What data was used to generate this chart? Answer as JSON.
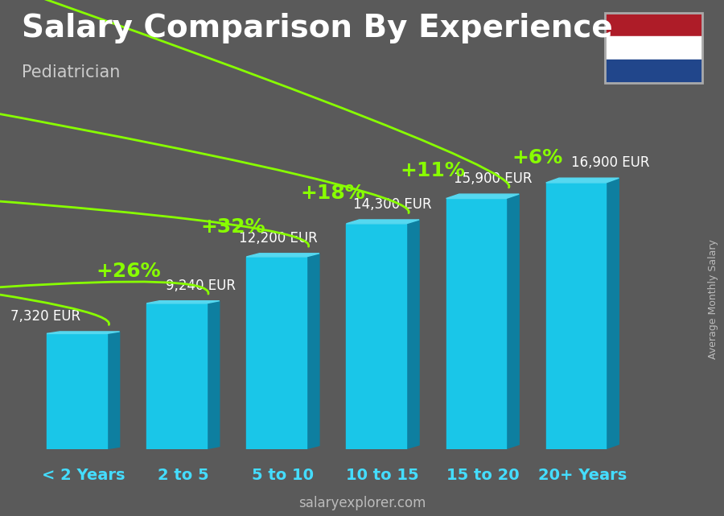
{
  "title": "Salary Comparison By Experience",
  "subtitle": "Pediatrician",
  "ylabel": "Average Monthly Salary",
  "watermark": "salaryexplorer.com",
  "categories": [
    "< 2 Years",
    "2 to 5",
    "5 to 10",
    "10 to 15",
    "15 to 20",
    "20+ Years"
  ],
  "values": [
    7320,
    9240,
    12200,
    14300,
    15900,
    16900
  ],
  "labels": [
    "7,320 EUR",
    "9,240 EUR",
    "12,200 EUR",
    "14,300 EUR",
    "15,900 EUR",
    "16,900 EUR"
  ],
  "pct_changes": [
    "+26%",
    "+32%",
    "+18%",
    "+11%",
    "+6%"
  ],
  "bar_color_face": "#1ac6e8",
  "bar_color_side": "#0e7fa0",
  "bar_color_top": "#55d8f0",
  "background_color": "#5a5a5a",
  "title_color": "#ffffff",
  "subtitle_color": "#cccccc",
  "label_color": "#ffffff",
  "category_color": "#44ddff",
  "pct_color": "#88ff00",
  "arrow_color": "#88ff00",
  "ylabel_color": "#bbbbbb",
  "watermark_color": "#bbbbbb",
  "title_fontsize": 28,
  "subtitle_fontsize": 15,
  "label_fontsize": 12,
  "category_fontsize": 14,
  "pct_fontsize": 18,
  "bar_width": 0.6,
  "ylim": [
    0,
    19000
  ],
  "flag_colors": [
    "#ae1c28",
    "#ffffff",
    "#21468b"
  ],
  "flag_border": "#888888"
}
